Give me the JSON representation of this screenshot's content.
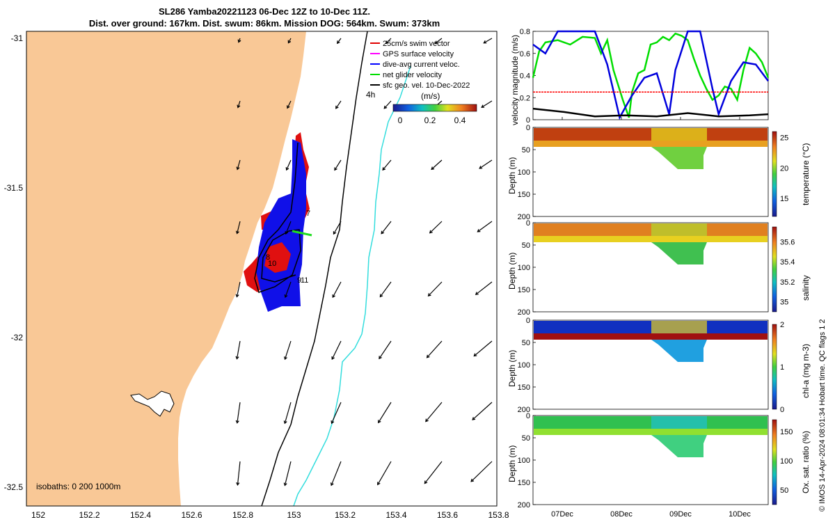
{
  "title": {
    "line1": "SL286 Yamba20221123 06-Dec 12Z to 10-Dec 11Z.",
    "line2": "Dist. over ground: 167km. Dist. swum: 86km. Mission DOG: 564km. Swum: 373km"
  },
  "map": {
    "legend": [
      {
        "label": "25cm/s swim vector",
        "color": "#e00000"
      },
      {
        "label": "GPS surface velocity",
        "color": "#ff00ff"
      },
      {
        "label": "dive-avg current veloc.",
        "color": "#0000ff"
      },
      {
        "label": "net glider velocity",
        "color": "#00dd00"
      },
      {
        "label": "sfc geo. vel. 10-Dec-2022",
        "color": "#000000"
      }
    ],
    "colorbar_title": "(m/s)",
    "colorbar_ticks": [
      "0",
      "0.2",
      "0.4"
    ],
    "time_label": "4h",
    "isobaths_label": "isobaths: 0   200  1000m",
    "point_labels": [
      "7",
      "8",
      "10",
      "9",
      "11"
    ],
    "lat_ticks": [
      "-31",
      "-31.5",
      "-32",
      "-32.5"
    ],
    "lon_ticks": [
      "152",
      "152.2",
      "152.4",
      "152.6",
      "152.8",
      "153",
      "153.2",
      "153.4",
      "153.6",
      "153.8"
    ],
    "land_color": "#f9c896",
    "contour_200_color": "#000000",
    "contour_1000_color": "#33dddd"
  },
  "chart_data": [
    {
      "type": "line",
      "ylabel": "velocity magnitude (m/s)",
      "ylim": [
        0,
        0.8
      ],
      "y_ticks": [
        "0",
        "0.2",
        "0.4",
        "0.6",
        "0.8"
      ],
      "x_ticks": [
        "07Dec",
        "08Dec",
        "09Dec",
        "10Dec"
      ],
      "series": [
        {
          "color": "#00dd00",
          "x": [
            0,
            0.05,
            0.1,
            0.2,
            0.4,
            0.6,
            0.8,
            1.0,
            1.1,
            1.2,
            1.3,
            1.45,
            1.55,
            1.6,
            1.7,
            1.8,
            1.9,
            2.0,
            2.1,
            2.2,
            2.3,
            2.4,
            2.5,
            2.6,
            2.7,
            2.8,
            2.9,
            3.0,
            3.1,
            3.2,
            3.3,
            3.4,
            3.5,
            3.6,
            3.7,
            3.8
          ],
          "y": [
            0.38,
            0.5,
            0.62,
            0.7,
            0.72,
            0.68,
            0.75,
            0.74,
            0.6,
            0.72,
            0.45,
            0.18,
            0.02,
            0.25,
            0.42,
            0.45,
            0.68,
            0.7,
            0.75,
            0.72,
            0.78,
            0.76,
            0.72,
            0.55,
            0.4,
            0.28,
            0.18,
            0.22,
            0.3,
            0.28,
            0.18,
            0.45,
            0.65,
            0.6,
            0.52,
            0.38
          ]
        },
        {
          "color": "#0000dd",
          "x": [
            0,
            0.2,
            0.4,
            0.6,
            0.8,
            1.0,
            1.2,
            1.4,
            1.6,
            1.8,
            2.0,
            2.2,
            2.3,
            2.5,
            2.7,
            2.9,
            3.0,
            3.2,
            3.4,
            3.6,
            3.8
          ],
          "y": [
            0.68,
            0.6,
            0.8,
            0.82,
            0.8,
            0.8,
            0.5,
            0.02,
            0.22,
            0.38,
            0.42,
            0.05,
            0.45,
            0.8,
            0.8,
            0.28,
            0.05,
            0.35,
            0.52,
            0.5,
            0.35
          ]
        },
        {
          "color": "#ff0000",
          "x": [
            0,
            3.8
          ],
          "y": [
            0.25,
            0.25
          ]
        },
        {
          "color": "#000000",
          "x": [
            0,
            0.5,
            1.0,
            1.5,
            2.0,
            2.5,
            3.0,
            3.5,
            3.8
          ],
          "y": [
            0.1,
            0.07,
            0.03,
            0.04,
            0.03,
            0.06,
            0.03,
            0.04,
            0.05
          ]
        }
      ]
    },
    {
      "type": "heatmap",
      "variable": "temperature",
      "ylabel": "Depth (m)",
      "cbar_label": "temperature (°C)",
      "clim": [
        12,
        26
      ],
      "cbar_ticks": [
        "15",
        "20",
        "25"
      ],
      "y_ticks": [
        "0",
        "50",
        "100",
        "150",
        "200"
      ]
    },
    {
      "type": "heatmap",
      "variable": "salinity",
      "ylabel": "Depth (m)",
      "cbar_label": "salinity",
      "clim": [
        34.9,
        35.75
      ],
      "cbar_ticks": [
        "35",
        "35.2",
        "35.4",
        "35.6"
      ],
      "y_ticks": [
        "0",
        "50",
        "100",
        "150",
        "200"
      ]
    },
    {
      "type": "heatmap",
      "variable": "chl-a",
      "ylabel": "Depth (m)",
      "cbar_label": "chl-a (mg m-3)",
      "clim": [
        0,
        2
      ],
      "cbar_ticks": [
        "0",
        "1",
        "2"
      ],
      "y_ticks": [
        "0",
        "50",
        "100",
        "150",
        "200"
      ]
    },
    {
      "type": "heatmap",
      "variable": "oxygen",
      "ylabel": "Depth (m)",
      "cbar_label": "Ox. sat. ratio (%)",
      "clim": [
        25,
        170
      ],
      "cbar_ticks": [
        "50",
        "100",
        "150"
      ],
      "y_ticks": [
        "0",
        "50",
        "100",
        "150",
        "200"
      ],
      "x_ticks": [
        "07Dec",
        "08Dec",
        "09Dec",
        "10Dec"
      ]
    }
  ],
  "footer": "© IMOS 14-Apr-2024 08:01:34 Hobart time. QC flags 1  2"
}
